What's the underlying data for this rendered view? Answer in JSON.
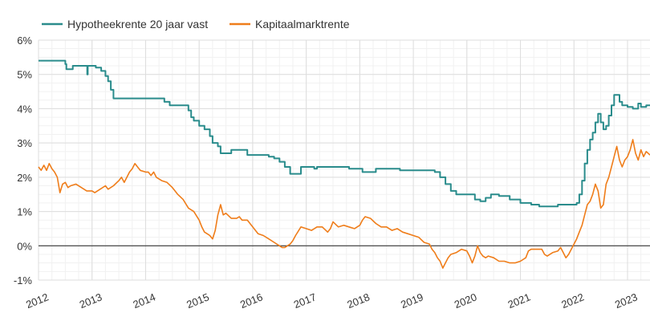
{
  "chart_data": {
    "type": "line",
    "title": "",
    "xlabel": "",
    "ylabel": "",
    "xlim": [
      2012.0,
      2023.42
    ],
    "ylim": [
      -1,
      6
    ],
    "x_ticks": [
      {
        "value": 2012,
        "label": "2012"
      },
      {
        "value": 2013,
        "label": "2013"
      },
      {
        "value": 2014,
        "label": "2014"
      },
      {
        "value": 2015,
        "label": "2015"
      },
      {
        "value": 2016,
        "label": "2016"
      },
      {
        "value": 2017,
        "label": "2017"
      },
      {
        "value": 2018,
        "label": "2018"
      },
      {
        "value": 2019,
        "label": "2019"
      },
      {
        "value": 2020,
        "label": "2020"
      },
      {
        "value": 2021,
        "label": "2021"
      },
      {
        "value": 2022,
        "label": "2022"
      },
      {
        "value": 2023,
        "label": "2023"
      }
    ],
    "y_ticks": [
      {
        "value": 6,
        "label": "6%"
      },
      {
        "value": 5,
        "label": "5%"
      },
      {
        "value": 4,
        "label": "4%"
      },
      {
        "value": 3,
        "label": "3%"
      },
      {
        "value": 2,
        "label": "2%"
      },
      {
        "value": 1,
        "label": "1%"
      },
      {
        "value": 0,
        "label": "0%"
      },
      {
        "value": -1,
        "label": "-1%"
      }
    ],
    "grid": true,
    "legend_position": "top-left",
    "series": [
      {
        "name": "Hypotheekrente 20 jaar vast",
        "color": "#2a8c8c",
        "style": "step",
        "points": [
          [
            2012.0,
            5.4
          ],
          [
            2012.5,
            5.3
          ],
          [
            2012.52,
            5.15
          ],
          [
            2012.62,
            5.15
          ],
          [
            2012.64,
            5.25
          ],
          [
            2012.9,
            5.25
          ],
          [
            2012.91,
            5.0
          ],
          [
            2012.92,
            5.25
          ],
          [
            2013.05,
            5.25
          ],
          [
            2013.07,
            5.2
          ],
          [
            2013.15,
            5.2
          ],
          [
            2013.17,
            5.1
          ],
          [
            2013.22,
            5.1
          ],
          [
            2013.25,
            4.95
          ],
          [
            2013.3,
            4.8
          ],
          [
            2013.35,
            4.55
          ],
          [
            2013.4,
            4.3
          ],
          [
            2013.6,
            4.3
          ],
          [
            2014.0,
            4.3
          ],
          [
            2014.3,
            4.3
          ],
          [
            2014.35,
            4.2
          ],
          [
            2014.45,
            4.1
          ],
          [
            2014.75,
            4.1
          ],
          [
            2014.8,
            3.95
          ],
          [
            2014.85,
            3.75
          ],
          [
            2014.9,
            3.65
          ],
          [
            2015.0,
            3.5
          ],
          [
            2015.1,
            3.4
          ],
          [
            2015.2,
            3.2
          ],
          [
            2015.25,
            3.0
          ],
          [
            2015.35,
            2.9
          ],
          [
            2015.4,
            2.7
          ],
          [
            2015.55,
            2.7
          ],
          [
            2015.6,
            2.8
          ],
          [
            2015.85,
            2.8
          ],
          [
            2015.9,
            2.65
          ],
          [
            2016.2,
            2.65
          ],
          [
            2016.3,
            2.6
          ],
          [
            2016.4,
            2.55
          ],
          [
            2016.5,
            2.45
          ],
          [
            2016.6,
            2.3
          ],
          [
            2016.7,
            2.1
          ],
          [
            2016.85,
            2.1
          ],
          [
            2016.9,
            2.3
          ],
          [
            2017.1,
            2.3
          ],
          [
            2017.15,
            2.25
          ],
          [
            2017.2,
            2.3
          ],
          [
            2017.75,
            2.3
          ],
          [
            2017.8,
            2.25
          ],
          [
            2018.0,
            2.25
          ],
          [
            2018.05,
            2.15
          ],
          [
            2018.25,
            2.15
          ],
          [
            2018.3,
            2.25
          ],
          [
            2018.7,
            2.25
          ],
          [
            2018.75,
            2.2
          ],
          [
            2019.3,
            2.2
          ],
          [
            2019.4,
            2.15
          ],
          [
            2019.5,
            2.0
          ],
          [
            2019.6,
            1.8
          ],
          [
            2019.7,
            1.6
          ],
          [
            2019.8,
            1.5
          ],
          [
            2020.05,
            1.5
          ],
          [
            2020.15,
            1.35
          ],
          [
            2020.25,
            1.3
          ],
          [
            2020.35,
            1.4
          ],
          [
            2020.45,
            1.5
          ],
          [
            2020.6,
            1.45
          ],
          [
            2020.8,
            1.35
          ],
          [
            2021.0,
            1.25
          ],
          [
            2021.2,
            1.2
          ],
          [
            2021.35,
            1.15
          ],
          [
            2021.65,
            1.15
          ],
          [
            2021.7,
            1.2
          ],
          [
            2022.0,
            1.2
          ],
          [
            2022.05,
            1.25
          ],
          [
            2022.1,
            1.5
          ],
          [
            2022.15,
            1.9
          ],
          [
            2022.2,
            2.4
          ],
          [
            2022.25,
            2.8
          ],
          [
            2022.3,
            3.1
          ],
          [
            2022.35,
            3.3
          ],
          [
            2022.4,
            3.6
          ],
          [
            2022.45,
            3.85
          ],
          [
            2022.5,
            3.6
          ],
          [
            2022.55,
            3.4
          ],
          [
            2022.6,
            3.5
          ],
          [
            2022.65,
            3.8
          ],
          [
            2022.7,
            4.1
          ],
          [
            2022.75,
            4.4
          ],
          [
            2022.8,
            4.4
          ],
          [
            2022.85,
            4.2
          ],
          [
            2022.9,
            4.1
          ],
          [
            2022.95,
            4.1
          ],
          [
            2023.0,
            4.05
          ],
          [
            2023.1,
            4.0
          ],
          [
            2023.2,
            4.15
          ],
          [
            2023.25,
            4.05
          ],
          [
            2023.3,
            4.05
          ],
          [
            2023.35,
            4.1
          ],
          [
            2023.42,
            4.1
          ]
        ]
      },
      {
        "name": "Kapitaalmarktrente",
        "color": "#ef7d1a",
        "style": "line",
        "points": [
          [
            2012.0,
            2.3
          ],
          [
            2012.05,
            2.2
          ],
          [
            2012.1,
            2.35
          ],
          [
            2012.15,
            2.2
          ],
          [
            2012.2,
            2.4
          ],
          [
            2012.25,
            2.25
          ],
          [
            2012.3,
            2.15
          ],
          [
            2012.35,
            2.0
          ],
          [
            2012.4,
            1.55
          ],
          [
            2012.45,
            1.8
          ],
          [
            2012.5,
            1.85
          ],
          [
            2012.55,
            1.7
          ],
          [
            2012.6,
            1.75
          ],
          [
            2012.7,
            1.8
          ],
          [
            2012.8,
            1.7
          ],
          [
            2012.9,
            1.6
          ],
          [
            2013.0,
            1.6
          ],
          [
            2013.05,
            1.55
          ],
          [
            2013.15,
            1.65
          ],
          [
            2013.25,
            1.75
          ],
          [
            2013.3,
            1.65
          ],
          [
            2013.4,
            1.75
          ],
          [
            2013.5,
            1.9
          ],
          [
            2013.55,
            2.0
          ],
          [
            2013.6,
            1.85
          ],
          [
            2013.65,
            2.0
          ],
          [
            2013.7,
            2.15
          ],
          [
            2013.75,
            2.25
          ],
          [
            2013.8,
            2.4
          ],
          [
            2013.85,
            2.3
          ],
          [
            2013.9,
            2.2
          ],
          [
            2014.0,
            2.15
          ],
          [
            2014.05,
            2.15
          ],
          [
            2014.1,
            2.05
          ],
          [
            2014.15,
            2.15
          ],
          [
            2014.2,
            2.0
          ],
          [
            2014.3,
            1.9
          ],
          [
            2014.4,
            1.85
          ],
          [
            2014.5,
            1.7
          ],
          [
            2014.55,
            1.6
          ],
          [
            2014.6,
            1.5
          ],
          [
            2014.7,
            1.35
          ],
          [
            2014.8,
            1.1
          ],
          [
            2014.9,
            1.0
          ],
          [
            2015.0,
            0.75
          ],
          [
            2015.05,
            0.55
          ],
          [
            2015.1,
            0.4
          ],
          [
            2015.15,
            0.35
          ],
          [
            2015.2,
            0.3
          ],
          [
            2015.25,
            0.2
          ],
          [
            2015.3,
            0.45
          ],
          [
            2015.35,
            0.9
          ],
          [
            2015.4,
            1.2
          ],
          [
            2015.45,
            0.9
          ],
          [
            2015.5,
            0.95
          ],
          [
            2015.6,
            0.8
          ],
          [
            2015.7,
            0.8
          ],
          [
            2015.75,
            0.85
          ],
          [
            2015.8,
            0.75
          ],
          [
            2015.9,
            0.75
          ],
          [
            2016.0,
            0.55
          ],
          [
            2016.1,
            0.35
          ],
          [
            2016.2,
            0.3
          ],
          [
            2016.3,
            0.2
          ],
          [
            2016.4,
            0.1
          ],
          [
            2016.5,
            0.0
          ],
          [
            2016.55,
            -0.05
          ],
          [
            2016.6,
            -0.05
          ],
          [
            2016.7,
            0.05
          ],
          [
            2016.75,
            0.15
          ],
          [
            2016.8,
            0.3
          ],
          [
            2016.9,
            0.55
          ],
          [
            2017.0,
            0.5
          ],
          [
            2017.1,
            0.45
          ],
          [
            2017.2,
            0.55
          ],
          [
            2017.3,
            0.55
          ],
          [
            2017.4,
            0.4
          ],
          [
            2017.45,
            0.5
          ],
          [
            2017.5,
            0.7
          ],
          [
            2017.6,
            0.55
          ],
          [
            2017.7,
            0.6
          ],
          [
            2017.8,
            0.55
          ],
          [
            2017.9,
            0.5
          ],
          [
            2018.0,
            0.6
          ],
          [
            2018.05,
            0.75
          ],
          [
            2018.1,
            0.85
          ],
          [
            2018.2,
            0.8
          ],
          [
            2018.3,
            0.65
          ],
          [
            2018.4,
            0.55
          ],
          [
            2018.5,
            0.55
          ],
          [
            2018.6,
            0.45
          ],
          [
            2018.7,
            0.5
          ],
          [
            2018.8,
            0.4
          ],
          [
            2018.9,
            0.35
          ],
          [
            2019.0,
            0.3
          ],
          [
            2019.1,
            0.25
          ],
          [
            2019.2,
            0.1
          ],
          [
            2019.3,
            0.05
          ],
          [
            2019.35,
            -0.1
          ],
          [
            2019.4,
            -0.2
          ],
          [
            2019.45,
            -0.35
          ],
          [
            2019.5,
            -0.45
          ],
          [
            2019.55,
            -0.65
          ],
          [
            2019.6,
            -0.5
          ],
          [
            2019.65,
            -0.35
          ],
          [
            2019.7,
            -0.25
          ],
          [
            2019.8,
            -0.2
          ],
          [
            2019.9,
            -0.1
          ],
          [
            2020.0,
            -0.15
          ],
          [
            2020.05,
            -0.3
          ],
          [
            2020.1,
            -0.5
          ],
          [
            2020.15,
            -0.3
          ],
          [
            2020.2,
            0.0
          ],
          [
            2020.25,
            -0.2
          ],
          [
            2020.3,
            -0.3
          ],
          [
            2020.35,
            -0.35
          ],
          [
            2020.4,
            -0.3
          ],
          [
            2020.5,
            -0.35
          ],
          [
            2020.6,
            -0.45
          ],
          [
            2020.7,
            -0.45
          ],
          [
            2020.8,
            -0.5
          ],
          [
            2020.9,
            -0.5
          ],
          [
            2021.0,
            -0.45
          ],
          [
            2021.1,
            -0.35
          ],
          [
            2021.15,
            -0.15
          ],
          [
            2021.2,
            -0.1
          ],
          [
            2021.3,
            -0.1
          ],
          [
            2021.4,
            -0.1
          ],
          [
            2021.45,
            -0.25
          ],
          [
            2021.5,
            -0.3
          ],
          [
            2021.6,
            -0.2
          ],
          [
            2021.7,
            -0.15
          ],
          [
            2021.75,
            -0.05
          ],
          [
            2021.8,
            -0.2
          ],
          [
            2021.85,
            -0.35
          ],
          [
            2021.9,
            -0.25
          ],
          [
            2021.95,
            -0.1
          ],
          [
            2022.0,
            0.05
          ],
          [
            2022.05,
            0.2
          ],
          [
            2022.1,
            0.4
          ],
          [
            2022.15,
            0.6
          ],
          [
            2022.2,
            0.9
          ],
          [
            2022.25,
            1.2
          ],
          [
            2022.3,
            1.3
          ],
          [
            2022.35,
            1.5
          ],
          [
            2022.4,
            1.8
          ],
          [
            2022.45,
            1.6
          ],
          [
            2022.5,
            1.1
          ],
          [
            2022.55,
            1.2
          ],
          [
            2022.6,
            1.8
          ],
          [
            2022.65,
            2.0
          ],
          [
            2022.7,
            2.3
          ],
          [
            2022.75,
            2.6
          ],
          [
            2022.8,
            2.9
          ],
          [
            2022.85,
            2.5
          ],
          [
            2022.9,
            2.3
          ],
          [
            2022.95,
            2.5
          ],
          [
            2023.0,
            2.6
          ],
          [
            2023.05,
            2.8
          ],
          [
            2023.1,
            3.1
          ],
          [
            2023.15,
            2.7
          ],
          [
            2023.2,
            2.5
          ],
          [
            2023.25,
            2.8
          ],
          [
            2023.3,
            2.6
          ],
          [
            2023.35,
            2.75
          ],
          [
            2023.42,
            2.65
          ]
        ]
      }
    ]
  }
}
